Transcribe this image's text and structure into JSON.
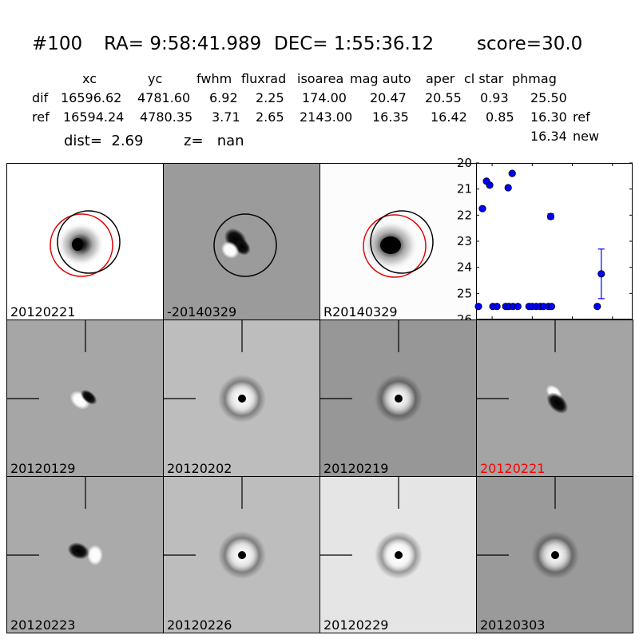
{
  "header": {
    "id": "#100",
    "ra": "RA= 9:58:41.989",
    "dec": "DEC= 1:55:36.12",
    "score": "score=30.0"
  },
  "table": {
    "columns": [
      "xc",
      "yc",
      "fwhm",
      "fluxrad",
      "isoarea",
      "mag auto",
      "aper",
      "cl star",
      "phmag"
    ],
    "rows": [
      {
        "label": "dif",
        "values": [
          "16596.62",
          "4781.60",
          "6.92",
          "2.25",
          "174.00",
          "20.47",
          "20.55",
          "0.93",
          "25.50"
        ],
        "tag": ""
      },
      {
        "label": "ref",
        "values": [
          "16594.24",
          "4780.35",
          "3.71",
          "2.65",
          "2143.00",
          "16.35",
          "16.42",
          "0.85",
          "16.30"
        ],
        "tag": "ref"
      }
    ],
    "extra_phmag": "16.34",
    "extra_tag": "new",
    "dist": "dist=  2.69",
    "z": "z=   nan"
  },
  "panels_top": [
    {
      "label": "20120221",
      "style": "ref",
      "label_color": "#000000"
    },
    {
      "label": "-20140329",
      "style": "diff",
      "label_color": "#000000"
    },
    {
      "label": "R20140329",
      "style": "ref",
      "label_color": "#000000"
    }
  ],
  "panels_grid": [
    {
      "label": "20120129",
      "style": "dipole_a",
      "label_color": "#000000"
    },
    {
      "label": "20120202",
      "style": "ring_light",
      "label_color": "#000000"
    },
    {
      "label": "20120219",
      "style": "ring_dark",
      "label_color": "#000000"
    },
    {
      "label": "20120221",
      "style": "dipole_b",
      "label_color": "#ff0000"
    },
    {
      "label": "20120223",
      "style": "dipole_c",
      "label_color": "#000000"
    },
    {
      "label": "20120226",
      "style": "ring_light",
      "label_color": "#000000"
    },
    {
      "label": "20120229",
      "style": "ring_white",
      "label_color": "#000000"
    },
    {
      "label": "20120303",
      "style": "ring_dark2",
      "label_color": "#000000"
    }
  ],
  "chart_data": {
    "type": "scatter",
    "xlim": [
      -70,
      125
    ],
    "ylim": [
      26,
      20
    ],
    "x_ticks": [
      -50,
      0,
      50,
      100
    ],
    "y_ticks": [
      20,
      21,
      22,
      23,
      24,
      25,
      26
    ],
    "marker_color": "#0000ff",
    "points": [
      {
        "x": -67,
        "y": 25.5
      },
      {
        "x": -62,
        "y": 21.75
      },
      {
        "x": -57,
        "y": 20.7
      },
      {
        "x": -53,
        "y": 20.85
      },
      {
        "x": -49,
        "y": 25.5
      },
      {
        "x": -44,
        "y": 25.5
      },
      {
        "x": -33,
        "y": 25.5
      },
      {
        "x": -30,
        "y": 20.95
      },
      {
        "x": -29,
        "y": 25.5
      },
      {
        "x": -25,
        "y": 20.4
      },
      {
        "x": -24,
        "y": 25.5
      },
      {
        "x": -18,
        "y": 25.5
      },
      {
        "x": -4,
        "y": 25.5
      },
      {
        "x": 0,
        "y": 25.5
      },
      {
        "x": 5,
        "y": 25.5
      },
      {
        "x": 10,
        "y": 25.5
      },
      {
        "x": 14,
        "y": 25.5
      },
      {
        "x": 20,
        "y": 25.5
      },
      {
        "x": 23,
        "y": 22.05,
        "err": 0.1
      },
      {
        "x": 24,
        "y": 25.5
      },
      {
        "x": 81,
        "y": 25.5
      },
      {
        "x": 86,
        "y": 24.25,
        "err": 0.95
      }
    ]
  }
}
